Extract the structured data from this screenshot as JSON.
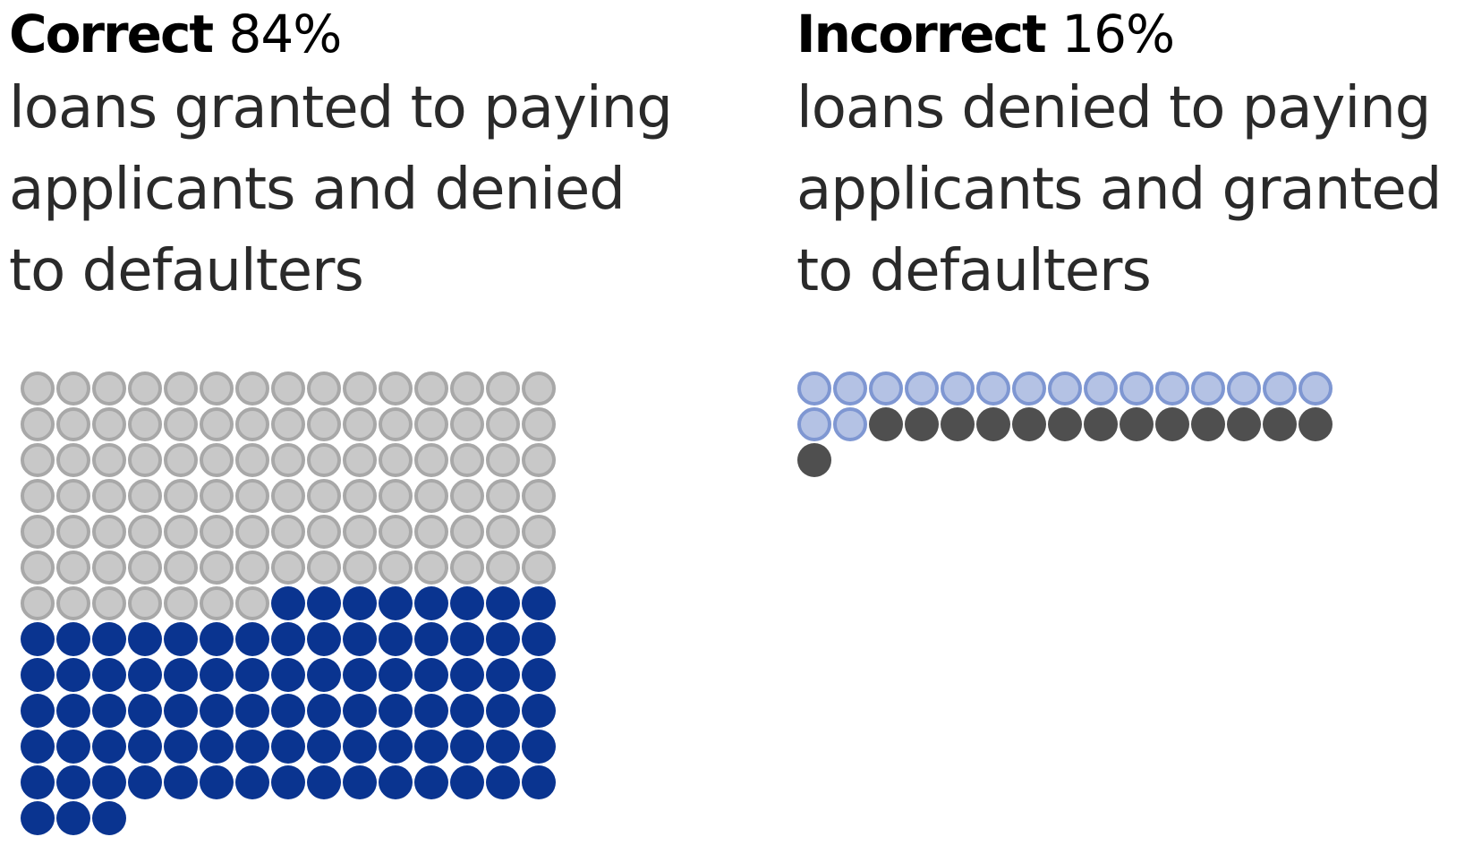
{
  "chart_data": [
    {
      "type": "waffle",
      "label": "Correct",
      "percent": "84%",
      "description_lines": [
        "loans granted to paying",
        "applicants and denied",
        "to defaulters"
      ],
      "columns": 15,
      "segments": [
        {
          "count": 97,
          "fill": "#c8c8c8",
          "stroke": "#a8a8a8",
          "style": "outlined"
        },
        {
          "count": 86,
          "fill": "#0a3490",
          "stroke": "#0a3490",
          "style": "solid"
        }
      ]
    },
    {
      "type": "waffle",
      "label": "Incorrect",
      "percent": "16%",
      "description_lines": [
        "loans denied to paying",
        "applicants and granted",
        "to defaulters"
      ],
      "columns": 15,
      "segments": [
        {
          "count": 17,
          "fill": "#b4c2e4",
          "stroke": "#7f97d2",
          "style": "outlined"
        },
        {
          "count": 14,
          "fill": "#4f4f4f",
          "stroke": "#4f4f4f",
          "style": "solid"
        }
      ]
    }
  ]
}
